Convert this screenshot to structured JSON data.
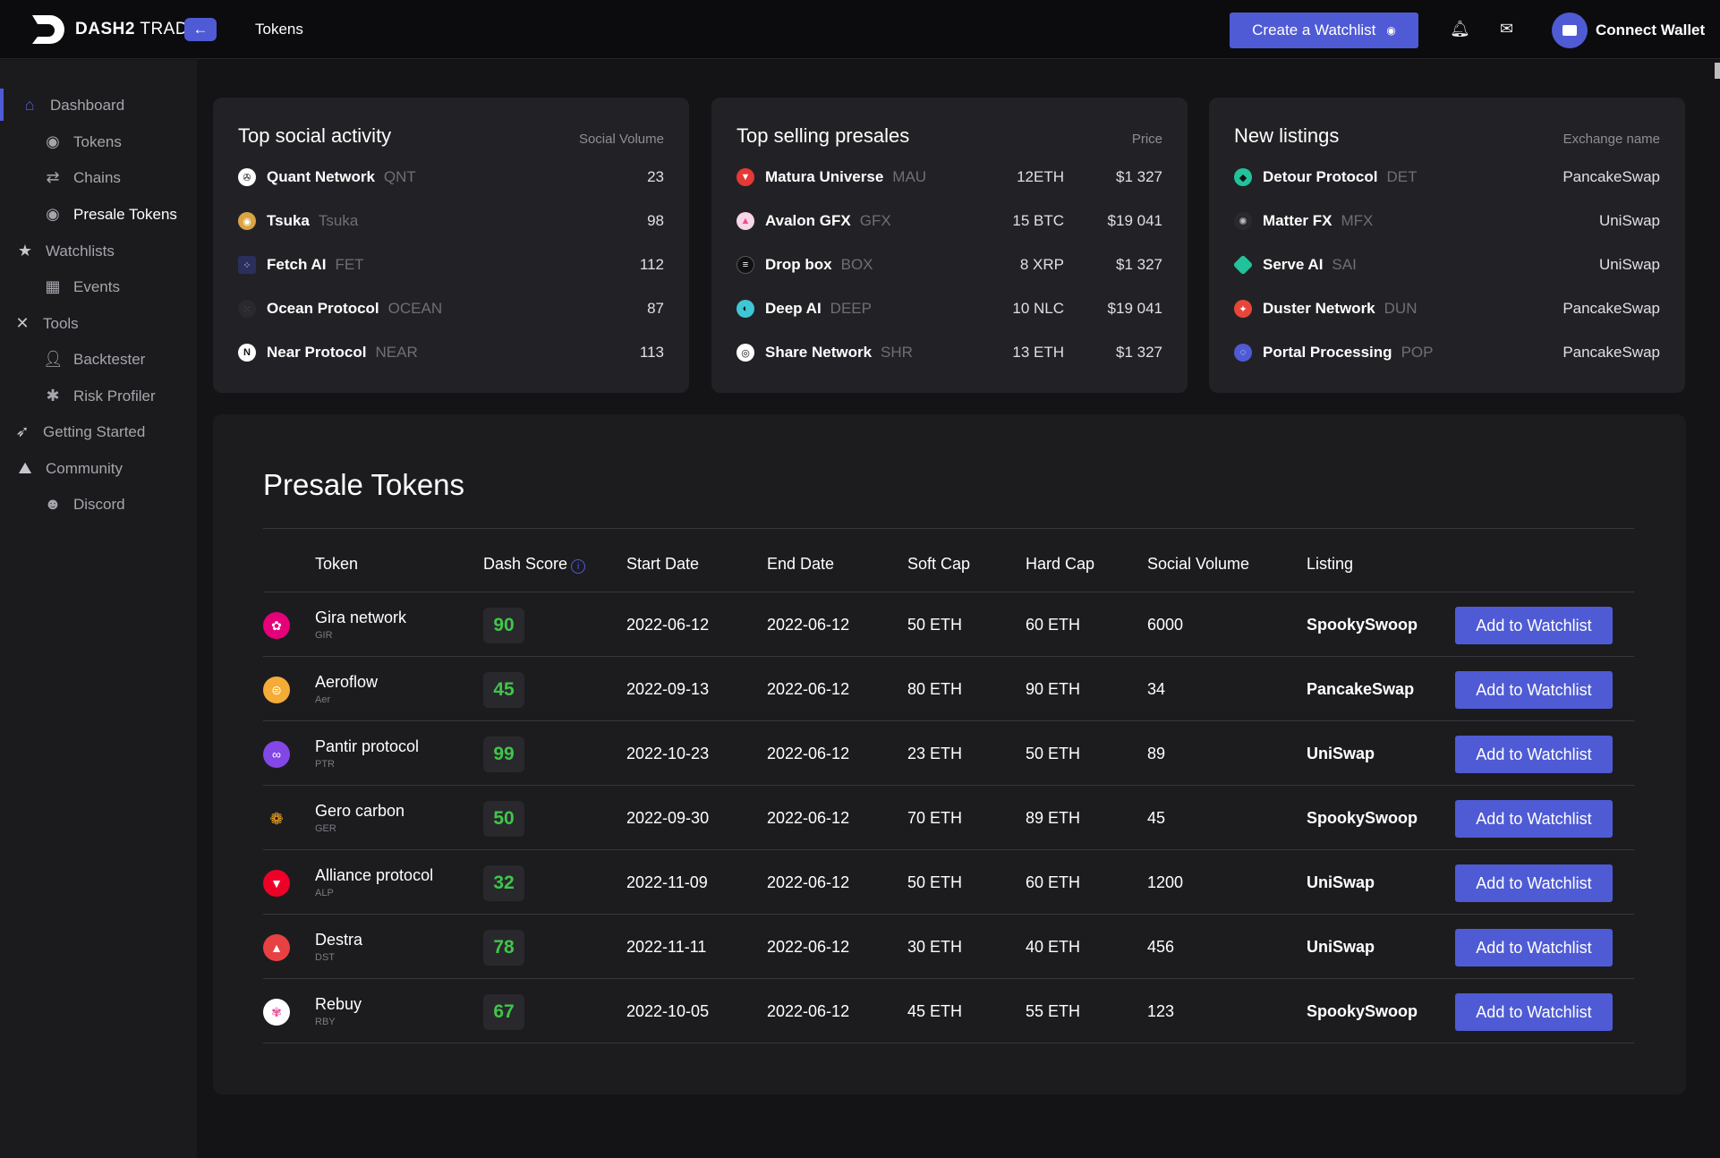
{
  "app": {
    "brand_bold": "DASH2",
    "brand_light": " TRADE",
    "back": "←",
    "page_tab": "Tokens"
  },
  "header": {
    "create_watchlist": "Create a Watchlist",
    "connect_wallet": "Connect Wallet"
  },
  "sidebar": {
    "items": [
      {
        "label": "Dashboard",
        "icon": "home-icon"
      },
      {
        "label": "Tokens",
        "icon": "token-icon"
      },
      {
        "label": "Chains",
        "icon": "chain-icon"
      },
      {
        "label": "Presale Tokens",
        "icon": "token-icon"
      },
      {
        "label": "Watchlists",
        "icon": "star-icon"
      },
      {
        "label": "Events",
        "icon": "calendar-icon"
      },
      {
        "label": "Tools",
        "icon": "tools-icon"
      },
      {
        "label": "Backtester",
        "icon": "user-icon"
      },
      {
        "label": "Risk Profiler",
        "icon": "risk-icon"
      },
      {
        "label": "Getting Started",
        "icon": "rocket-icon"
      },
      {
        "label": "Community",
        "icon": "community-icon"
      },
      {
        "label": "Discord",
        "icon": "discord-icon"
      }
    ]
  },
  "social": {
    "title": "Top social activity",
    "sub": "Social Volume",
    "rows": [
      {
        "name": "Quant Network",
        "ticker": "QNT",
        "value": "23",
        "color": "#ffffff"
      },
      {
        "name": "Tsuka",
        "ticker": "Tsuka",
        "value": "98",
        "color": "#d9a441"
      },
      {
        "name": "Fetch AI",
        "ticker": "FET",
        "value": "112",
        "color": "#3a3f7a"
      },
      {
        "name": "Ocean Protocol",
        "ticker": "OCEAN",
        "value": "87",
        "color": "#2a2a2e"
      },
      {
        "name": "Near Protocol",
        "ticker": "NEAR",
        "value": "113",
        "color": "#ffffff"
      }
    ]
  },
  "presales": {
    "title": "Top selling presales",
    "sub": "Price",
    "rows": [
      {
        "name": "Matura Universe",
        "ticker": "MAU",
        "amount": "12ETH",
        "price": "$1 327",
        "color": "#e53935"
      },
      {
        "name": "Avalon GFX",
        "ticker": "GFX",
        "amount": "15 BTC",
        "price": "$19 041",
        "color": "#e84d9a"
      },
      {
        "name": "Drop box",
        "ticker": "BOX",
        "amount": "8 XRP",
        "price": "$1 327",
        "color": "#1e1e22"
      },
      {
        "name": "Deep AI",
        "ticker": "DEEP",
        "amount": "10 NLC",
        "price": "$19 041",
        "color": "#3fc7d6"
      },
      {
        "name": "Share Network",
        "ticker": "SHR",
        "amount": "13 ETH",
        "price": "$1 327",
        "color": "#ffffff"
      }
    ]
  },
  "listings": {
    "title": "New listings",
    "sub": "Exchange name",
    "rows": [
      {
        "name": "Detour Protocol",
        "ticker": "DET",
        "exchange": "PancakeSwap",
        "color": "#22c39a"
      },
      {
        "name": "Matter FX",
        "ticker": "MFX",
        "exchange": "UniSwap",
        "color": "#8a8a90"
      },
      {
        "name": "Serve AI",
        "ticker": "SAI",
        "exchange": "UniSwap",
        "color": "#22c39a"
      },
      {
        "name": "Duster Network",
        "ticker": "DUN",
        "exchange": "PancakeSwap",
        "color": "#e8463a"
      },
      {
        "name": "Portal Processing",
        "ticker": "POP",
        "exchange": "PancakeSwap",
        "color": "#4f5bd5"
      }
    ]
  },
  "presale_table": {
    "title": "Presale Tokens",
    "headers": {
      "token": "Token",
      "dash_score": "Dash Score",
      "start": "Start Date",
      "end": "End Date",
      "soft": "Soft Cap",
      "hard": "Hard Cap",
      "social": "Social Volume",
      "listing": "Listing"
    },
    "rows": [
      {
        "name": "Gira network",
        "ticker": "GIR",
        "score": "90",
        "start": "2022-06-12",
        "end": "2022-06-12",
        "soft": "50 ETH",
        "hard": "60 ETH",
        "social": "6000",
        "listing": "SpookySwoop",
        "button": "Add to Watchlist",
        "color": "#e6007a"
      },
      {
        "name": "Aeroflow",
        "ticker": "Aer",
        "score": "45",
        "start": "2022-09-13",
        "end": "2022-06-12",
        "soft": "80 ETH",
        "hard": "90 ETH",
        "social": "34",
        "listing": "PancakeSwap",
        "button": "Add to Watchlist",
        "color": "#f5ac37"
      },
      {
        "name": "Pantir protocol",
        "ticker": "PTR",
        "score": "99",
        "start": "2022-10-23",
        "end": "2022-06-12",
        "soft": "23 ETH",
        "hard": "50 ETH",
        "social": "89",
        "listing": "UniSwap",
        "button": "Add to Watchlist",
        "color": "#8247e5"
      },
      {
        "name": "Gero carbon",
        "ticker": "GER",
        "score": "50",
        "start": "2022-09-30",
        "end": "2022-06-12",
        "soft": "70 ETH",
        "hard": "89 ETH",
        "social": "45",
        "listing": "SpookySwoop",
        "button": "Add to Watchlist",
        "color": "#1c1c1f"
      },
      {
        "name": "Alliance protocol",
        "ticker": "ALP",
        "score": "32",
        "start": "2022-11-09",
        "end": "2022-06-12",
        "soft": "50 ETH",
        "hard": "60 ETH",
        "social": "1200",
        "listing": "UniSwap",
        "button": "Add to Watchlist",
        "color": "#ef0027"
      },
      {
        "name": "Destra",
        "ticker": "DST",
        "score": "78",
        "start": "2022-11-11",
        "end": "2022-06-12",
        "soft": "30 ETH",
        "hard": "40 ETH",
        "social": "456",
        "listing": "UniSwap",
        "button": "Add to Watchlist",
        "color": "#e84142"
      },
      {
        "name": "Rebuy",
        "ticker": "RBY",
        "score": "67",
        "start": "2022-10-05",
        "end": "2022-06-12",
        "soft": "45 ETH",
        "hard": "55 ETH",
        "social": "123",
        "listing": "SpookySwoop",
        "button": "Add to Watchlist",
        "color": "#ffffff"
      }
    ]
  },
  "colors": {
    "accent": "#4f5bd5",
    "score_green": "#3fc64a",
    "panel": "#1c1c1f",
    "card": "#222226"
  }
}
